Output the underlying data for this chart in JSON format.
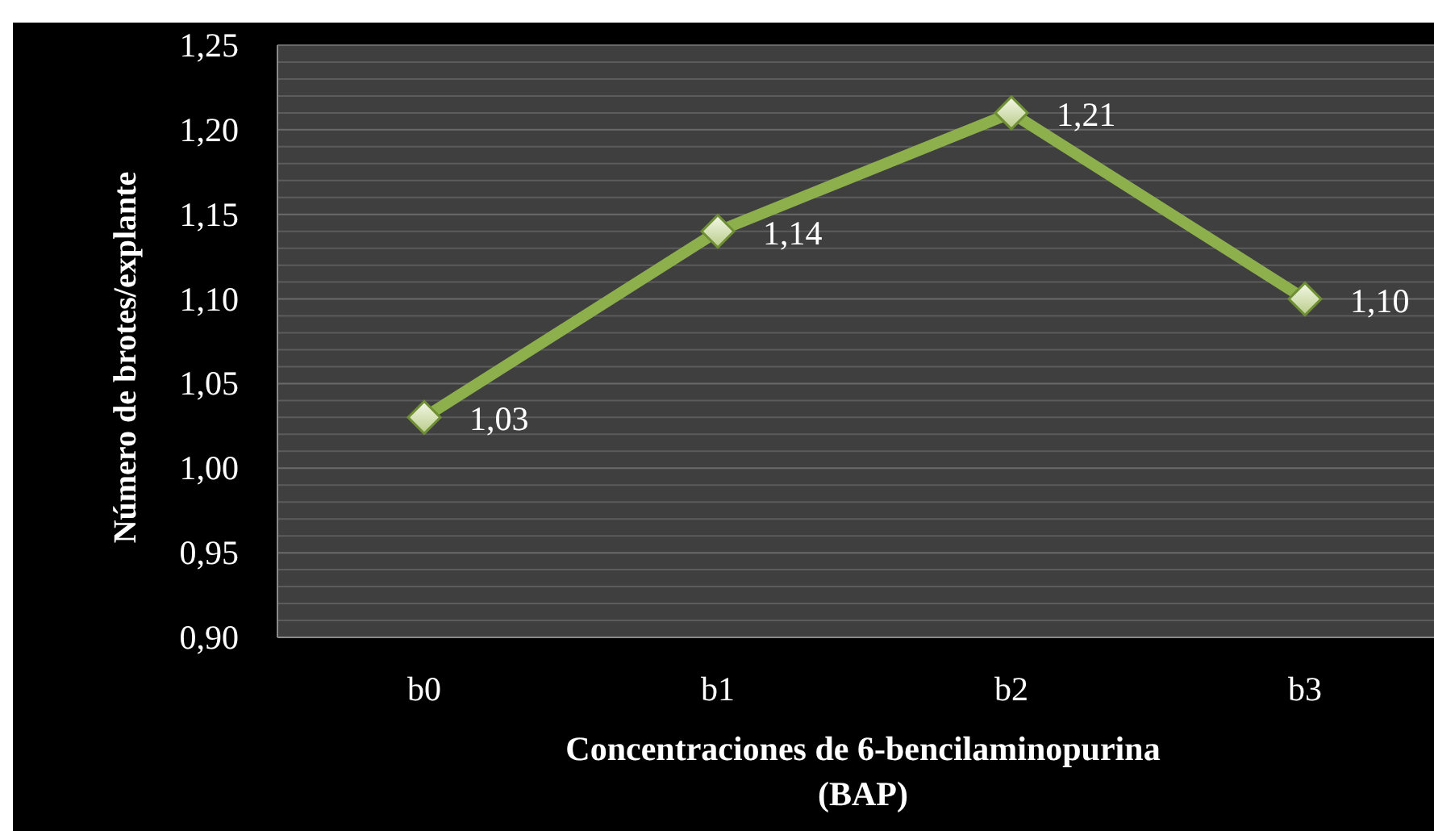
{
  "chart_data": {
    "type": "line",
    "xlabel": "Concentraciones de 6-bencilaminopurina\n(BAP)",
    "ylabel": "Número  de brotes/explante",
    "categories": [
      "b0",
      "b1",
      "b2",
      "b3"
    ],
    "series": [
      {
        "color": "#8db04c",
        "values": [
          1.03,
          1.14,
          1.21,
          1.1
        ],
        "value_labels": [
          "1,03",
          "1,14",
          "1,21",
          "1,10"
        ]
      }
    ],
    "ylim": [
      0.9,
      1.25
    ],
    "yticks": [
      {
        "value": 0.9,
        "label": "0,90"
      },
      {
        "value": 0.95,
        "label": "0,95"
      },
      {
        "value": 1.0,
        "label": "1,00"
      },
      {
        "value": 1.05,
        "label": "1,05"
      },
      {
        "value": 1.1,
        "label": "1,10"
      },
      {
        "value": 1.15,
        "label": "1,15"
      },
      {
        "value": 1.2,
        "label": "1,20"
      },
      {
        "value": 1.25,
        "label": "1,25"
      }
    ],
    "grid": true,
    "marker": "diamond",
    "line_style": "solid"
  }
}
